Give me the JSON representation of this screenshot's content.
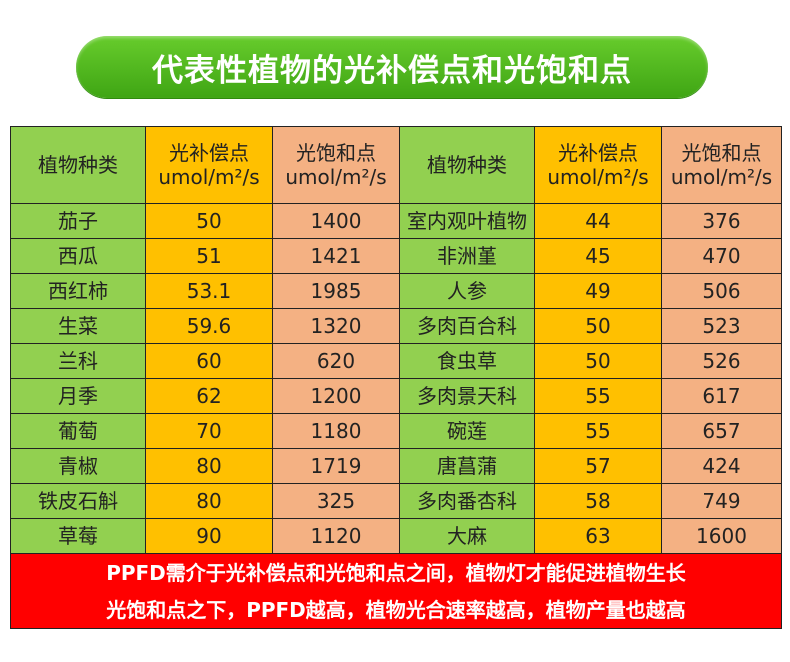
{
  "title": "代表性植物的光补偿点和光饱和点",
  "headers": {
    "name": "植物种类",
    "comp_line1": "光补偿点",
    "comp_line2": "umol/m²/s",
    "sat_line1": "光饱和点",
    "sat_line2": "umol/m²/s"
  },
  "rows": [
    {
      "left": {
        "name": "茄子",
        "comp": "50",
        "sat": "1400"
      },
      "right": {
        "name": "室内观叶植物",
        "comp": "44",
        "sat": "376"
      }
    },
    {
      "left": {
        "name": "西瓜",
        "comp": "51",
        "sat": "1421"
      },
      "right": {
        "name": "非洲堇",
        "comp": "45",
        "sat": "470"
      }
    },
    {
      "left": {
        "name": "西红柿",
        "comp": "53.1",
        "sat": "1985"
      },
      "right": {
        "name": "人参",
        "comp": "49",
        "sat": "506"
      }
    },
    {
      "left": {
        "name": "生菜",
        "comp": "59.6",
        "sat": "1320"
      },
      "right": {
        "name": "多肉百合科",
        "comp": "50",
        "sat": "523"
      }
    },
    {
      "left": {
        "name": "兰科",
        "comp": "60",
        "sat": "620"
      },
      "right": {
        "name": "食虫草",
        "comp": "50",
        "sat": "526"
      }
    },
    {
      "left": {
        "name": "月季",
        "comp": "62",
        "sat": "1200"
      },
      "right": {
        "name": "多肉景天科",
        "comp": "55",
        "sat": "617"
      }
    },
    {
      "left": {
        "name": "葡萄",
        "comp": "70",
        "sat": "1180"
      },
      "right": {
        "name": "碗莲",
        "comp": "55",
        "sat": "657"
      }
    },
    {
      "left": {
        "name": "青椒",
        "comp": "80",
        "sat": "1719"
      },
      "right": {
        "name": "唐菖蒲",
        "comp": "57",
        "sat": "424"
      }
    },
    {
      "left": {
        "name": "铁皮石斛",
        "comp": "80",
        "sat": "325"
      },
      "right": {
        "name": "多肉番杏科",
        "comp": "58",
        "sat": "749"
      }
    },
    {
      "left": {
        "name": "草莓",
        "comp": "90",
        "sat": "1120"
      },
      "right": {
        "name": "大麻",
        "comp": "63",
        "sat": "1600"
      }
    }
  ],
  "footer": {
    "line1": "PPFD需介于光补偿点和光饱和点之间，植物灯才能促进植物生长",
    "line2": "光饱和点之下，PPFD越高，植物光合速率越高，植物产量也越高"
  },
  "colors": {
    "title_green": "#4caf20",
    "name_green": "#92d050",
    "comp_orange": "#ffc000",
    "sat_salmon": "#f4b183",
    "footer_red": "#ff0000"
  }
}
